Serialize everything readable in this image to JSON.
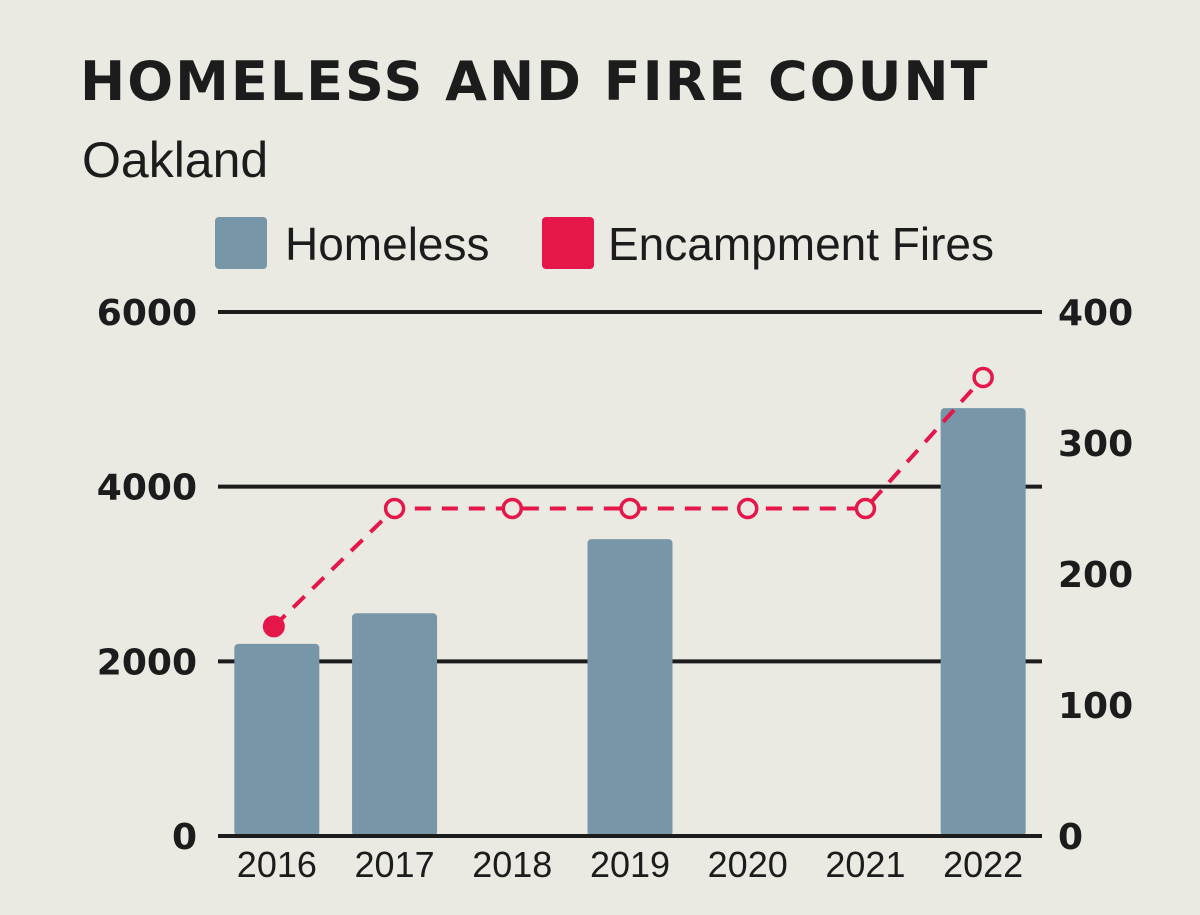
{
  "chart_data": {
    "type": "bar",
    "title": "HOMELESS AND FIRE COUNT",
    "subtitle": "Oakland",
    "categories": [
      "2016",
      "2017",
      "2018",
      "2019",
      "2020",
      "2021",
      "2022"
    ],
    "series": [
      {
        "name": "Homeless",
        "type": "bar",
        "axis": "left",
        "color": "#7796A8",
        "values": [
          2200,
          2550,
          null,
          3400,
          null,
          null,
          4900
        ]
      },
      {
        "name": "Encampment Fires",
        "type": "line",
        "axis": "right",
        "color": "#E5174A",
        "line_style": "dashed",
        "values": [
          160,
          250,
          250,
          250,
          250,
          250,
          350
        ]
      }
    ],
    "left_axis": {
      "ylim": [
        0,
        6000
      ],
      "ticks": [
        "0",
        "2000",
        "4000",
        "6000"
      ]
    },
    "right_axis": {
      "ylim": [
        0,
        400
      ],
      "ticks": [
        "0",
        "100",
        "200",
        "300",
        "400"
      ]
    },
    "grid": true,
    "legend_position": "top"
  }
}
